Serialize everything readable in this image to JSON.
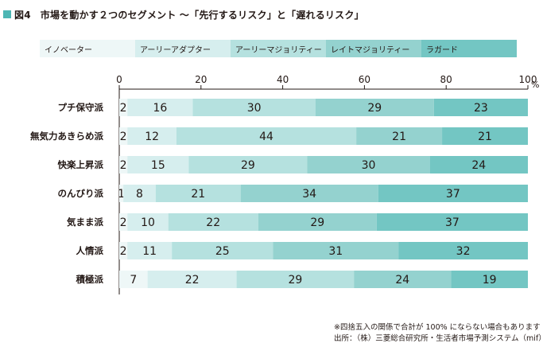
{
  "figure_label": "図4",
  "title": "市場を動かす２つのセグメント ～「先行するリスク」と「遅れるリスク」",
  "colors": {
    "title_box": "#4db6b4",
    "segments": [
      "#eef7f7",
      "#d6eeee",
      "#b5e1df",
      "#94d2cf",
      "#73c6c3"
    ]
  },
  "chart_data": {
    "type": "bar",
    "orientation": "horizontal",
    "stacked": true,
    "x_unit": "%",
    "xlim": [
      0,
      100
    ],
    "x_ticks": [
      "0",
      "20",
      "40",
      "60",
      "80",
      "100"
    ],
    "categories": [
      "プチ保守派",
      "無気力あきらめ派",
      "快楽上昇派",
      "のんびり派",
      "気まま派",
      "人情派",
      "積極派"
    ],
    "series": [
      {
        "name": "イノベーター",
        "values": [
          2,
          2,
          2,
          1,
          2,
          2,
          7
        ]
      },
      {
        "name": "アーリーアダプター",
        "values": [
          16,
          12,
          15,
          8,
          10,
          11,
          22
        ]
      },
      {
        "name": "アーリーマジョリティー",
        "values": [
          30,
          44,
          29,
          21,
          22,
          25,
          29
        ]
      },
      {
        "name": "レイトマジョリティー",
        "values": [
          29,
          21,
          30,
          34,
          29,
          31,
          24
        ]
      },
      {
        "name": "ラガード",
        "values": [
          23,
          21,
          24,
          37,
          37,
          32,
          19
        ]
      }
    ],
    "legend_position": "top"
  },
  "notes": {
    "line1": "※四捨五入の関係で合計が 100% にならない場合もあります",
    "line2": "出所：（株）三菱総合研究所・生活者市場予測システム（mif）"
  }
}
